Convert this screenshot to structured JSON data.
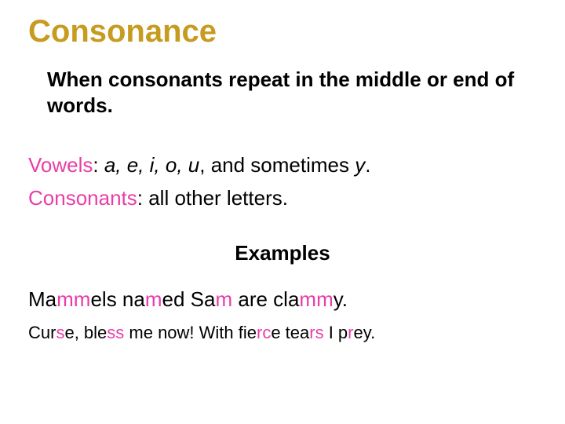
{
  "colors": {
    "title": "#c69b1f",
    "highlight": "#e83ea8",
    "text": "#000000",
    "background": "#ffffff"
  },
  "typography": {
    "title_fontsize": 40,
    "body_fontsize": 26,
    "ex2_fontsize": 22,
    "font_family": "Arial"
  },
  "title": "Consonance",
  "definition": "When consonants repeat in the middle or end of words.",
  "vowels_label": "Vowels",
  "vowels_list": "a, e, i, o, u",
  "vowels_tail": ", and sometimes ",
  "vowels_y": "y",
  "vowels_period": ".",
  "consonants_label": "Consonants",
  "consonants_text": ": all other letters.",
  "examples_heading": "Examples",
  "ex1": {
    "p1": "Ma",
    "h1": "mm",
    "p2": "els na",
    "h2": "m",
    "p3": "ed Sa",
    "h3": "m",
    "p4": " are cla",
    "h4": "mm",
    "p5": "y."
  },
  "ex2": {
    "p1": "Cur",
    "h1": "s",
    "p2": "e, ble",
    "h2": "ss",
    "p3": " me now!  With fie",
    "h3": "rc",
    "p4": "e tea",
    "h4": "rs",
    "p5": " I p",
    "h5": "r",
    "p6": "ey."
  }
}
